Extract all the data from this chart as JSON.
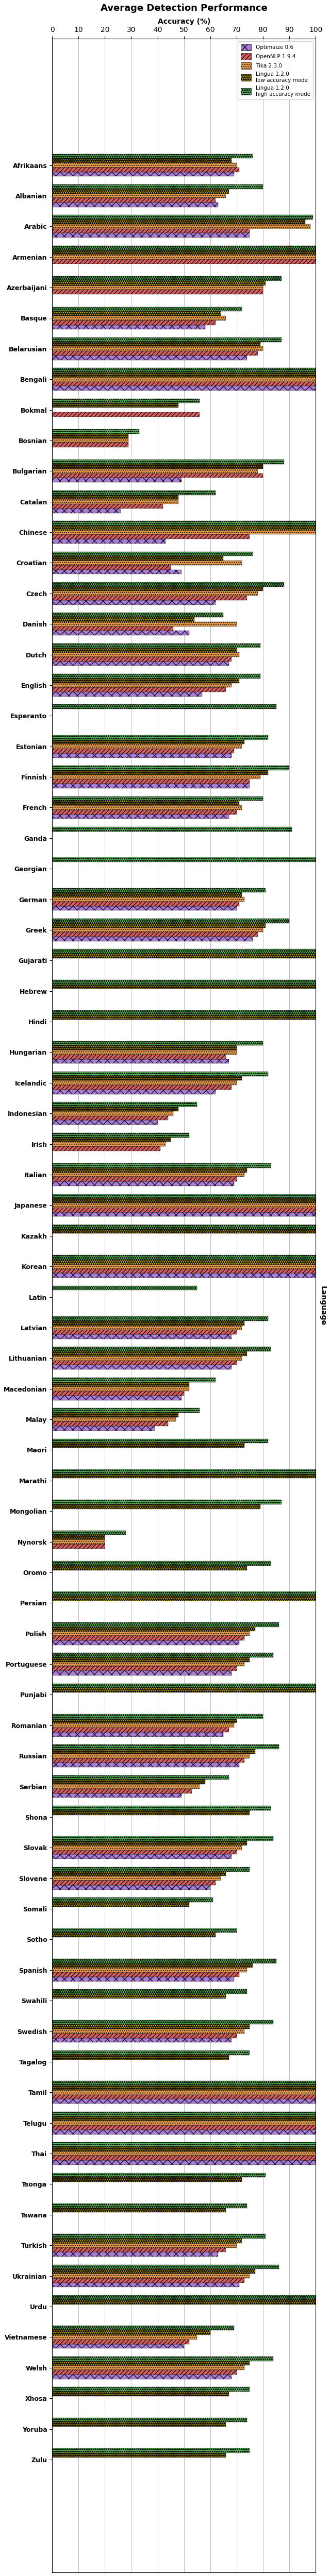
{
  "title": "Average Detection Performance",
  "xlabel": "Accuracy (%)",
  "ylabel": "Language",
  "xlim": [
    0,
    100
  ],
  "xticks": [
    0,
    10,
    20,
    30,
    40,
    50,
    60,
    70,
    80,
    90,
    100
  ],
  "legend_labels": [
    "Optimaize 0.6",
    "OpenNLP 1.9.4",
    "Tika 2.3.0",
    "Lingua 1.2.0\nlow accuracy mode",
    "Lingua 1.2.0\nhigh accuracy mode"
  ],
  "colors": [
    "#9966cc",
    "#cc4444",
    "#dd8833",
    "#ccaa00",
    "#44aa44"
  ],
  "languages": [
    "Afrikaans",
    "Albanian",
    "Arabic",
    "Armenian",
    "Azerbaijani",
    "Basque",
    "Belarusian",
    "Bengali",
    "Bokmal",
    "Bosnian",
    "Bulgarian",
    "Catalan",
    "Chinese",
    "Croatian",
    "Czech",
    "Danish",
    "Dutch",
    "English",
    "Esperanto",
    "Estonian",
    "Finnish",
    "French",
    "Ganda",
    "Georgian",
    "German",
    "Greek",
    "Gujarati",
    "Hebrew",
    "Hindi",
    "Hungarian",
    "Icelandic",
    "Indonesian",
    "Irish",
    "Italian",
    "Japanese",
    "Kazakh",
    "Korean",
    "Latin",
    "Latvian",
    "Lithuanian",
    "Macedonian",
    "Malay",
    "Maori",
    "Marathi",
    "Mongolian",
    "Nynorsk",
    "Oromo",
    "Persian",
    "Polish",
    "Portuguese",
    "Punjabi",
    "Romanian",
    "Russian",
    "Serbian",
    "Shona",
    "Slovak",
    "Slovene",
    "Somali",
    "Sotho",
    "Spanish",
    "Swahili",
    "Swedish",
    "Tagalog",
    "Tamil",
    "Telugu",
    "Thai",
    "Tsonga",
    "Tswana",
    "Turkish",
    "Ukrainian",
    "Urdu",
    "Vietnamese",
    "Welsh",
    "Xhosa",
    "Yoruba",
    "Zulu"
  ],
  "values": {
    "Optimaize 0.6": [
      69,
      63,
      75,
      0,
      0,
      58,
      74,
      100,
      0,
      0,
      49,
      26,
      43,
      49,
      62,
      52,
      67,
      57,
      0,
      68,
      75,
      67,
      0,
      0,
      70,
      76,
      0,
      0,
      0,
      67,
      62,
      40,
      0,
      69,
      100,
      0,
      100,
      0,
      68,
      68,
      49,
      39,
      0,
      0,
      0,
      0,
      0,
      0,
      71,
      68,
      0,
      65,
      71,
      49,
      0,
      68,
      60,
      0,
      0,
      69,
      0,
      68,
      0,
      100,
      100,
      100,
      0,
      0,
      63,
      71,
      0,
      50,
      68,
      0,
      0,
      0
    ],
    "OpenNLP 1.9.4": [
      71,
      62,
      75,
      100,
      80,
      62,
      78,
      100,
      56,
      29,
      80,
      42,
      75,
      45,
      74,
      46,
      68,
      66,
      0,
      69,
      75,
      70,
      0,
      0,
      71,
      78,
      0,
      0,
      0,
      66,
      68,
      44,
      41,
      70,
      100,
      0,
      100,
      0,
      70,
      70,
      50,
      44,
      0,
      0,
      0,
      20,
      0,
      0,
      73,
      70,
      0,
      67,
      73,
      53,
      0,
      70,
      62,
      0,
      0,
      71,
      0,
      70,
      0,
      100,
      100,
      100,
      0,
      0,
      66,
      73,
      0,
      52,
      70,
      0,
      0,
      0
    ],
    "Tika 2.3.0": [
      70,
      66,
      98,
      100,
      80,
      66,
      80,
      100,
      0,
      29,
      78,
      48,
      100,
      72,
      78,
      70,
      71,
      68,
      0,
      72,
      79,
      72,
      0,
      0,
      73,
      80,
      0,
      0,
      0,
      70,
      70,
      46,
      43,
      73,
      100,
      0,
      100,
      0,
      72,
      72,
      52,
      47,
      0,
      0,
      0,
      20,
      0,
      0,
      75,
      73,
      0,
      69,
      75,
      56,
      0,
      72,
      64,
      0,
      0,
      74,
      0,
      73,
      0,
      100,
      100,
      100,
      0,
      0,
      70,
      75,
      0,
      55,
      73,
      0,
      0,
      0
    ],
    "Lingua 1.2.0\nlow accuracy mode": [
      68,
      67,
      96,
      100,
      81,
      64,
      79,
      100,
      48,
      29,
      80,
      48,
      100,
      65,
      80,
      54,
      70,
      71,
      0,
      73,
      82,
      71,
      0,
      0,
      72,
      81,
      100,
      100,
      100,
      70,
      72,
      48,
      45,
      74,
      100,
      100,
      100,
      0,
      73,
      74,
      52,
      48,
      73,
      100,
      79,
      20,
      74,
      100,
      77,
      75,
      100,
      70,
      77,
      58,
      75,
      74,
      66,
      52,
      62,
      76,
      66,
      75,
      67,
      100,
      100,
      100,
      72,
      66,
      72,
      77,
      100,
      60,
      75,
      67,
      66,
      66
    ],
    "Lingua 1.2.0\nhigh accuracy mode": [
      76,
      80,
      99,
      100,
      87,
      72,
      87,
      100,
      56,
      33,
      88,
      62,
      100,
      76,
      88,
      65,
      79,
      79,
      85,
      82,
      90,
      80,
      91,
      100,
      81,
      90,
      100,
      100,
      100,
      80,
      82,
      55,
      52,
      83,
      100,
      100,
      100,
      55,
      82,
      83,
      62,
      56,
      82,
      100,
      87,
      28,
      83,
      100,
      86,
      84,
      100,
      80,
      86,
      67,
      83,
      84,
      75,
      61,
      70,
      85,
      74,
      84,
      75,
      100,
      100,
      100,
      81,
      74,
      81,
      86,
      100,
      69,
      84,
      75,
      74,
      75
    ]
  }
}
